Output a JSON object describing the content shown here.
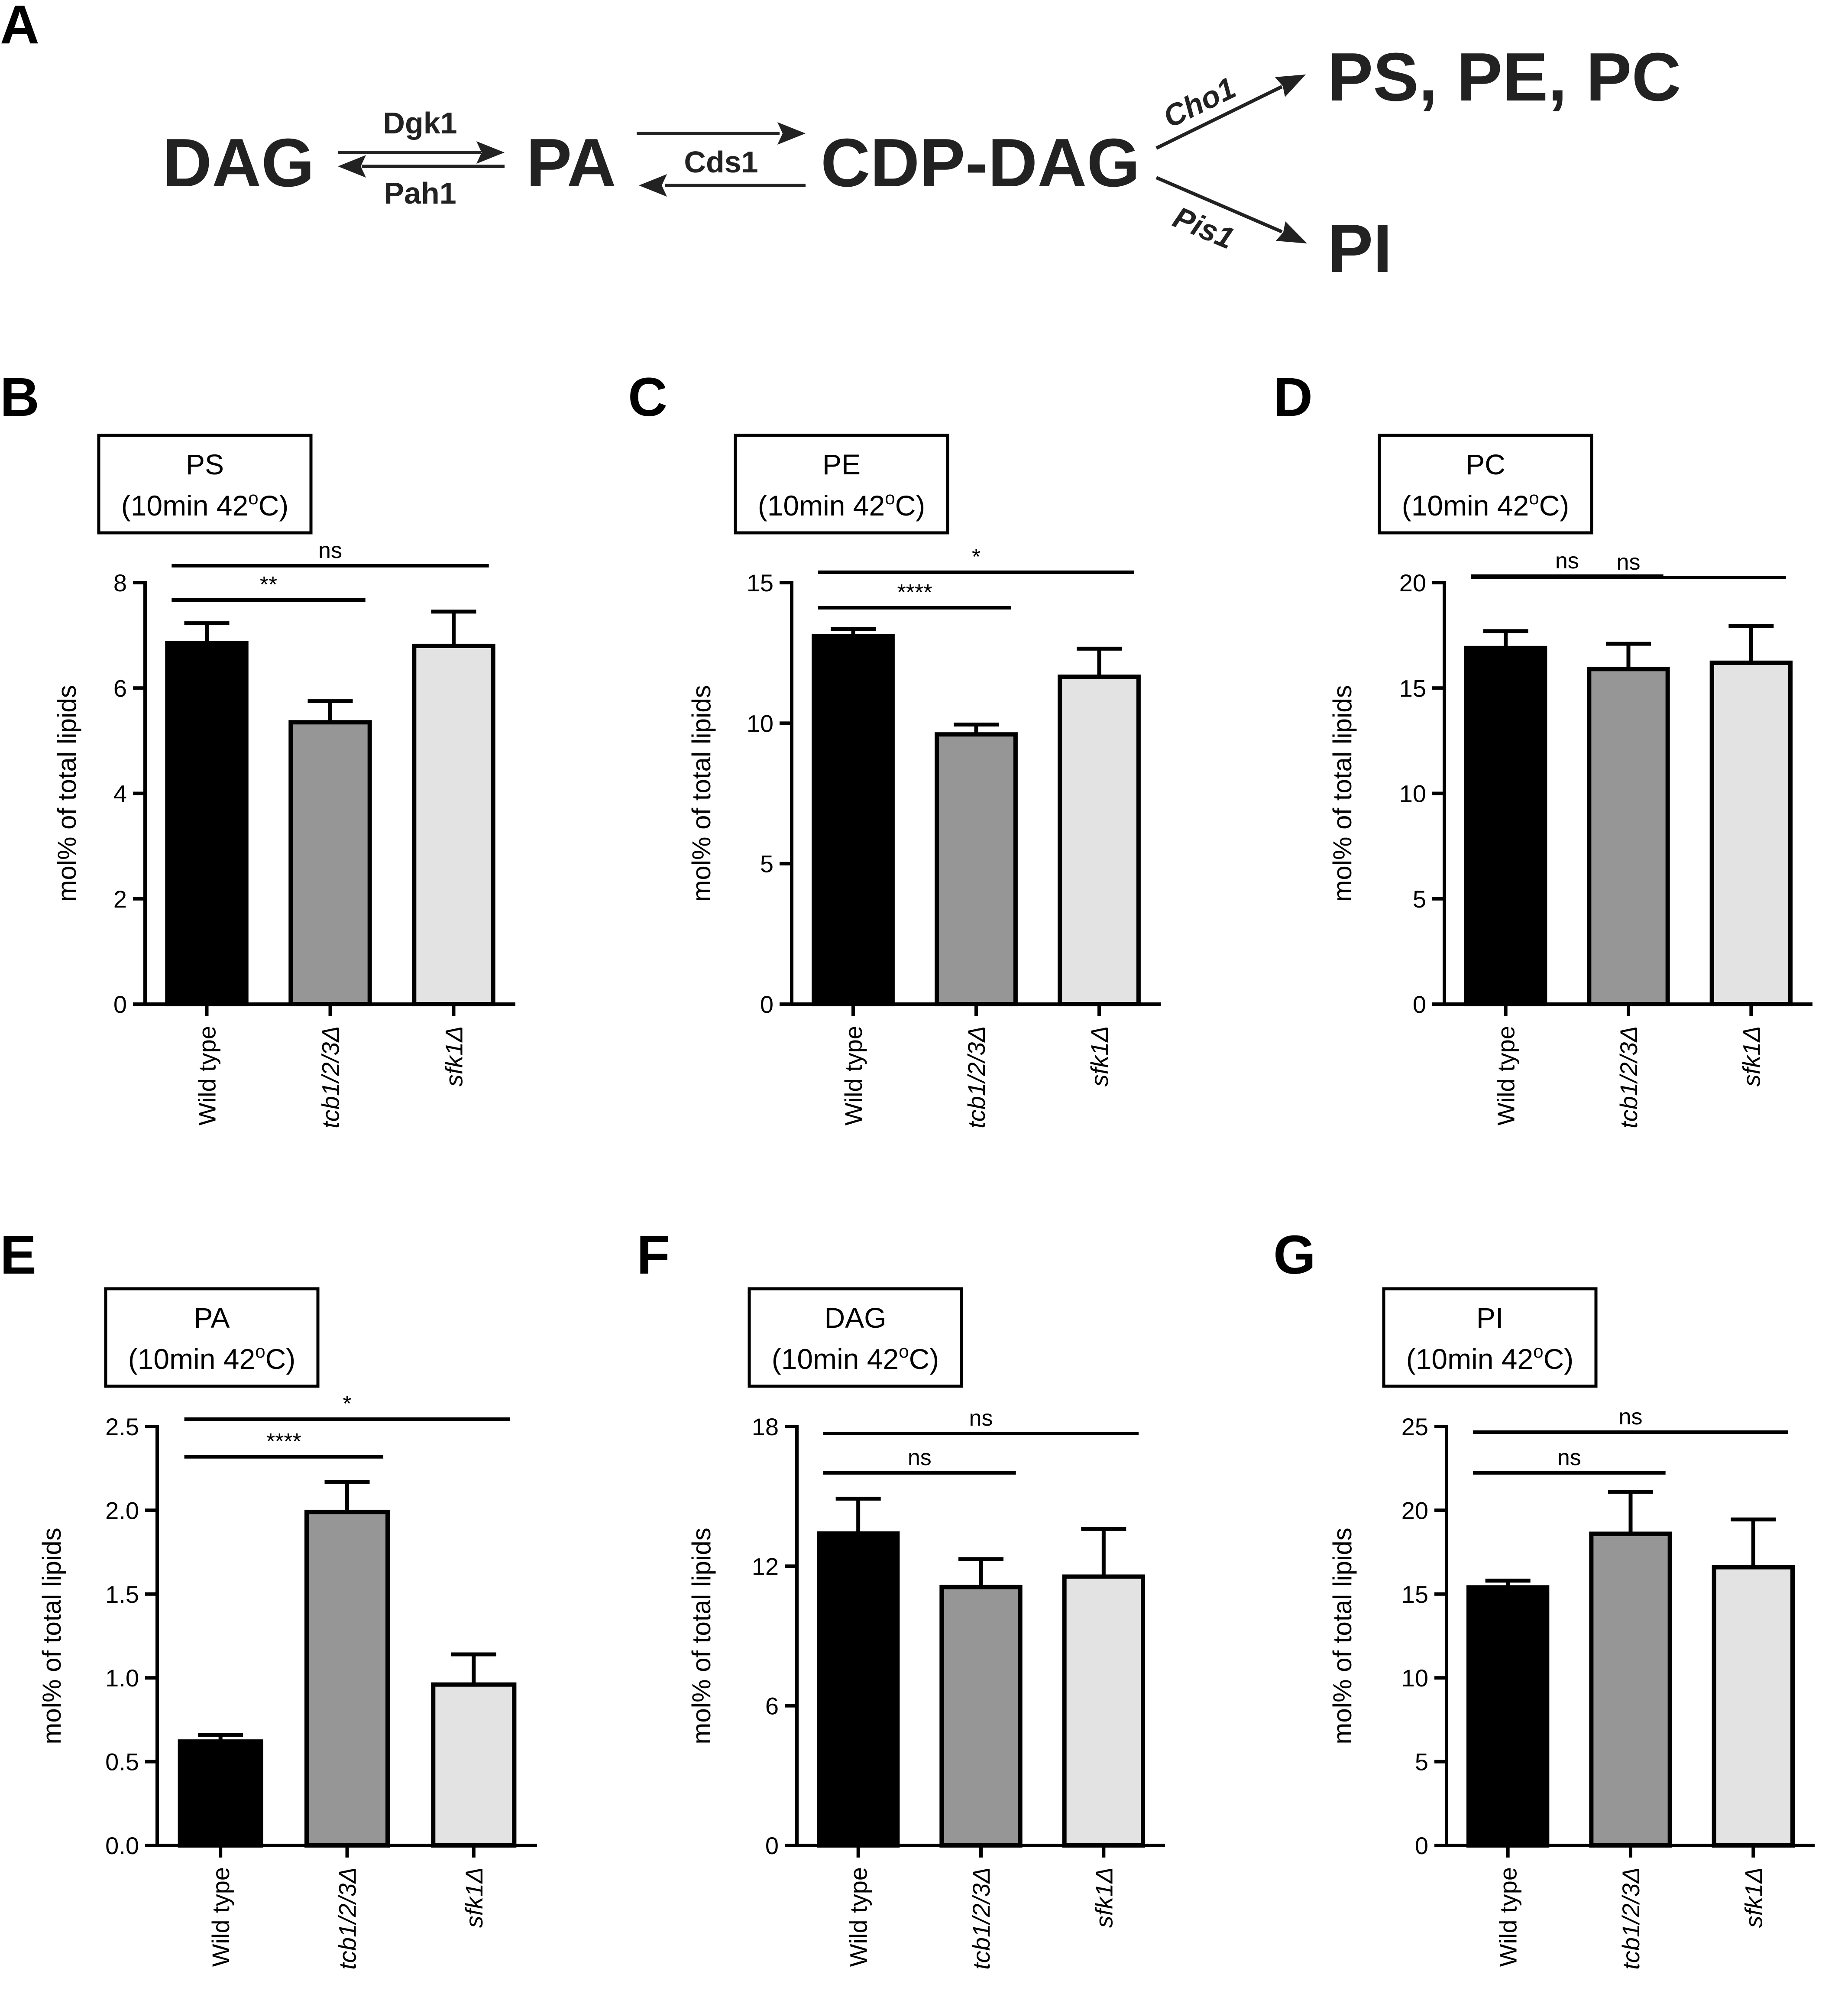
{
  "pathway": {
    "panel_label": "A",
    "nodes": [
      "DAG",
      "PA",
      "CDP-DAG",
      "PS, PE, PC",
      "PI"
    ],
    "enzymes": {
      "dag_to_pa": "Dgk1",
      "pa_to_dag": "Pah1",
      "pa_cdp": "Cds1",
      "cdp_to_ps": "Cho1",
      "cdp_to_pi": "Pis1"
    }
  },
  "chart_data": [
    {
      "type": "bar",
      "panel": "B",
      "title": [
        "PS",
        "(10min 42oC)"
      ],
      "ylabel": "mol% of total lipids",
      "categories": [
        "Wild type",
        "tcb1/2/3Δ",
        "sfk1Δ"
      ],
      "italic_categories": [
        false,
        true,
        true
      ],
      "values": [
        6.85,
        5.35,
        6.8
      ],
      "errors": [
        0.38,
        0.4,
        0.65
      ],
      "bar_colors": [
        "#000000",
        "#969696",
        "#e3e3e3"
      ],
      "ylim": [
        0,
        8
      ],
      "yticks": [
        0,
        2,
        4,
        6,
        8
      ],
      "ytick_labels": [
        "0",
        "2",
        "4",
        "6",
        "8"
      ],
      "significance": [
        {
          "from": 0,
          "to": 1,
          "label": "**"
        },
        {
          "from": 0,
          "to": 2,
          "label": "ns"
        }
      ]
    },
    {
      "type": "bar",
      "panel": "C",
      "title": [
        "PE",
        "(10min 42oC)"
      ],
      "ylabel": "mol% of total lipids",
      "categories": [
        "Wild type",
        "tcb1/2/3Δ",
        "sfk1Δ"
      ],
      "italic_categories": [
        false,
        true,
        true
      ],
      "values": [
        13.1,
        9.6,
        11.65
      ],
      "errors": [
        0.25,
        0.35,
        1.0
      ],
      "bar_colors": [
        "#000000",
        "#969696",
        "#e3e3e3"
      ],
      "ylim": [
        0,
        15
      ],
      "yticks": [
        0,
        5,
        10,
        15
      ],
      "ytick_labels": [
        "0",
        "5",
        "10",
        "15"
      ],
      "significance": [
        {
          "from": 0,
          "to": 1,
          "label": "****"
        },
        {
          "from": 0,
          "to": 2,
          "label": "*"
        }
      ]
    },
    {
      "type": "bar",
      "panel": "D",
      "title": [
        "PC",
        "(10min 42oC)"
      ],
      "ylabel": "mol% of total lipids",
      "categories": [
        "Wild type",
        "tcb1/2/3Δ",
        "sfk1Δ"
      ],
      "italic_categories": [
        false,
        true,
        true
      ],
      "values": [
        16.9,
        15.9,
        16.2
      ],
      "errors": [
        0.8,
        1.2,
        1.75
      ],
      "bar_colors": [
        "#000000",
        "#969696",
        "#e3e3e3"
      ],
      "ylim": [
        0,
        20
      ],
      "yticks": [
        0,
        5,
        10,
        15,
        20
      ],
      "ytick_labels": [
        "0",
        "5",
        "10",
        "15",
        "20"
      ],
      "significance": [
        {
          "from": 0,
          "to": 1,
          "label": "ns"
        },
        {
          "from": 0,
          "to": 2,
          "label": "ns"
        }
      ]
    },
    {
      "type": "bar",
      "panel": "E",
      "title": [
        "PA",
        "(10min 42oC)"
      ],
      "ylabel": "mol% of total lipids",
      "categories": [
        "Wild type",
        "tcb1/2/3Δ",
        "sfk1Δ"
      ],
      "italic_categories": [
        false,
        true,
        true
      ],
      "values": [
        0.62,
        1.99,
        0.96
      ],
      "errors": [
        0.04,
        0.18,
        0.18
      ],
      "bar_colors": [
        "#000000",
        "#969696",
        "#e3e3e3"
      ],
      "ylim": [
        0,
        2.5
      ],
      "yticks": [
        0,
        0.5,
        1.0,
        1.5,
        2.0,
        2.5
      ],
      "ytick_labels": [
        "0.0",
        "0.5",
        "1.0",
        "1.5",
        "2.0",
        "2.5"
      ],
      "significance": [
        {
          "from": 0,
          "to": 1,
          "label": "****"
        },
        {
          "from": 0,
          "to": 2,
          "label": "*"
        }
      ]
    },
    {
      "type": "bar",
      "panel": "F",
      "title": [
        "DAG",
        "(10min 42oC)"
      ],
      "ylabel": "mol% of total lipids",
      "categories": [
        "Wild type",
        "tcb1/2/3Δ",
        "sfk1Δ"
      ],
      "italic_categories": [
        false,
        true,
        true
      ],
      "values": [
        13.4,
        11.1,
        11.55
      ],
      "errors": [
        1.5,
        1.2,
        2.05
      ],
      "bar_colors": [
        "#000000",
        "#969696",
        "#e3e3e3"
      ],
      "ylim": [
        0,
        18
      ],
      "yticks": [
        0,
        6,
        12,
        18
      ],
      "ytick_labels": [
        "0",
        "6",
        "12",
        "18"
      ],
      "significance": [
        {
          "from": 0,
          "to": 1,
          "label": "ns"
        },
        {
          "from": 0,
          "to": 2,
          "label": "ns"
        }
      ]
    },
    {
      "type": "bar",
      "panel": "G",
      "title": [
        "PI",
        "(10min 42oC)"
      ],
      "ylabel": "mol% of total lipids",
      "categories": [
        "Wild type",
        "tcb1/2/3Δ",
        "sfk1Δ"
      ],
      "italic_categories": [
        false,
        true,
        true
      ],
      "values": [
        15.4,
        18.6,
        16.6
      ],
      "errors": [
        0.4,
        2.5,
        2.85
      ],
      "bar_colors": [
        "#000000",
        "#969696",
        "#e3e3e3"
      ],
      "ylim": [
        0,
        25
      ],
      "yticks": [
        0,
        5,
        10,
        15,
        20,
        25
      ],
      "ytick_labels": [
        "0",
        "5",
        "10",
        "15",
        "20",
        "25"
      ],
      "significance": [
        {
          "from": 0,
          "to": 1,
          "label": "ns"
        },
        {
          "from": 0,
          "to": 2,
          "label": "ns"
        }
      ]
    }
  ]
}
